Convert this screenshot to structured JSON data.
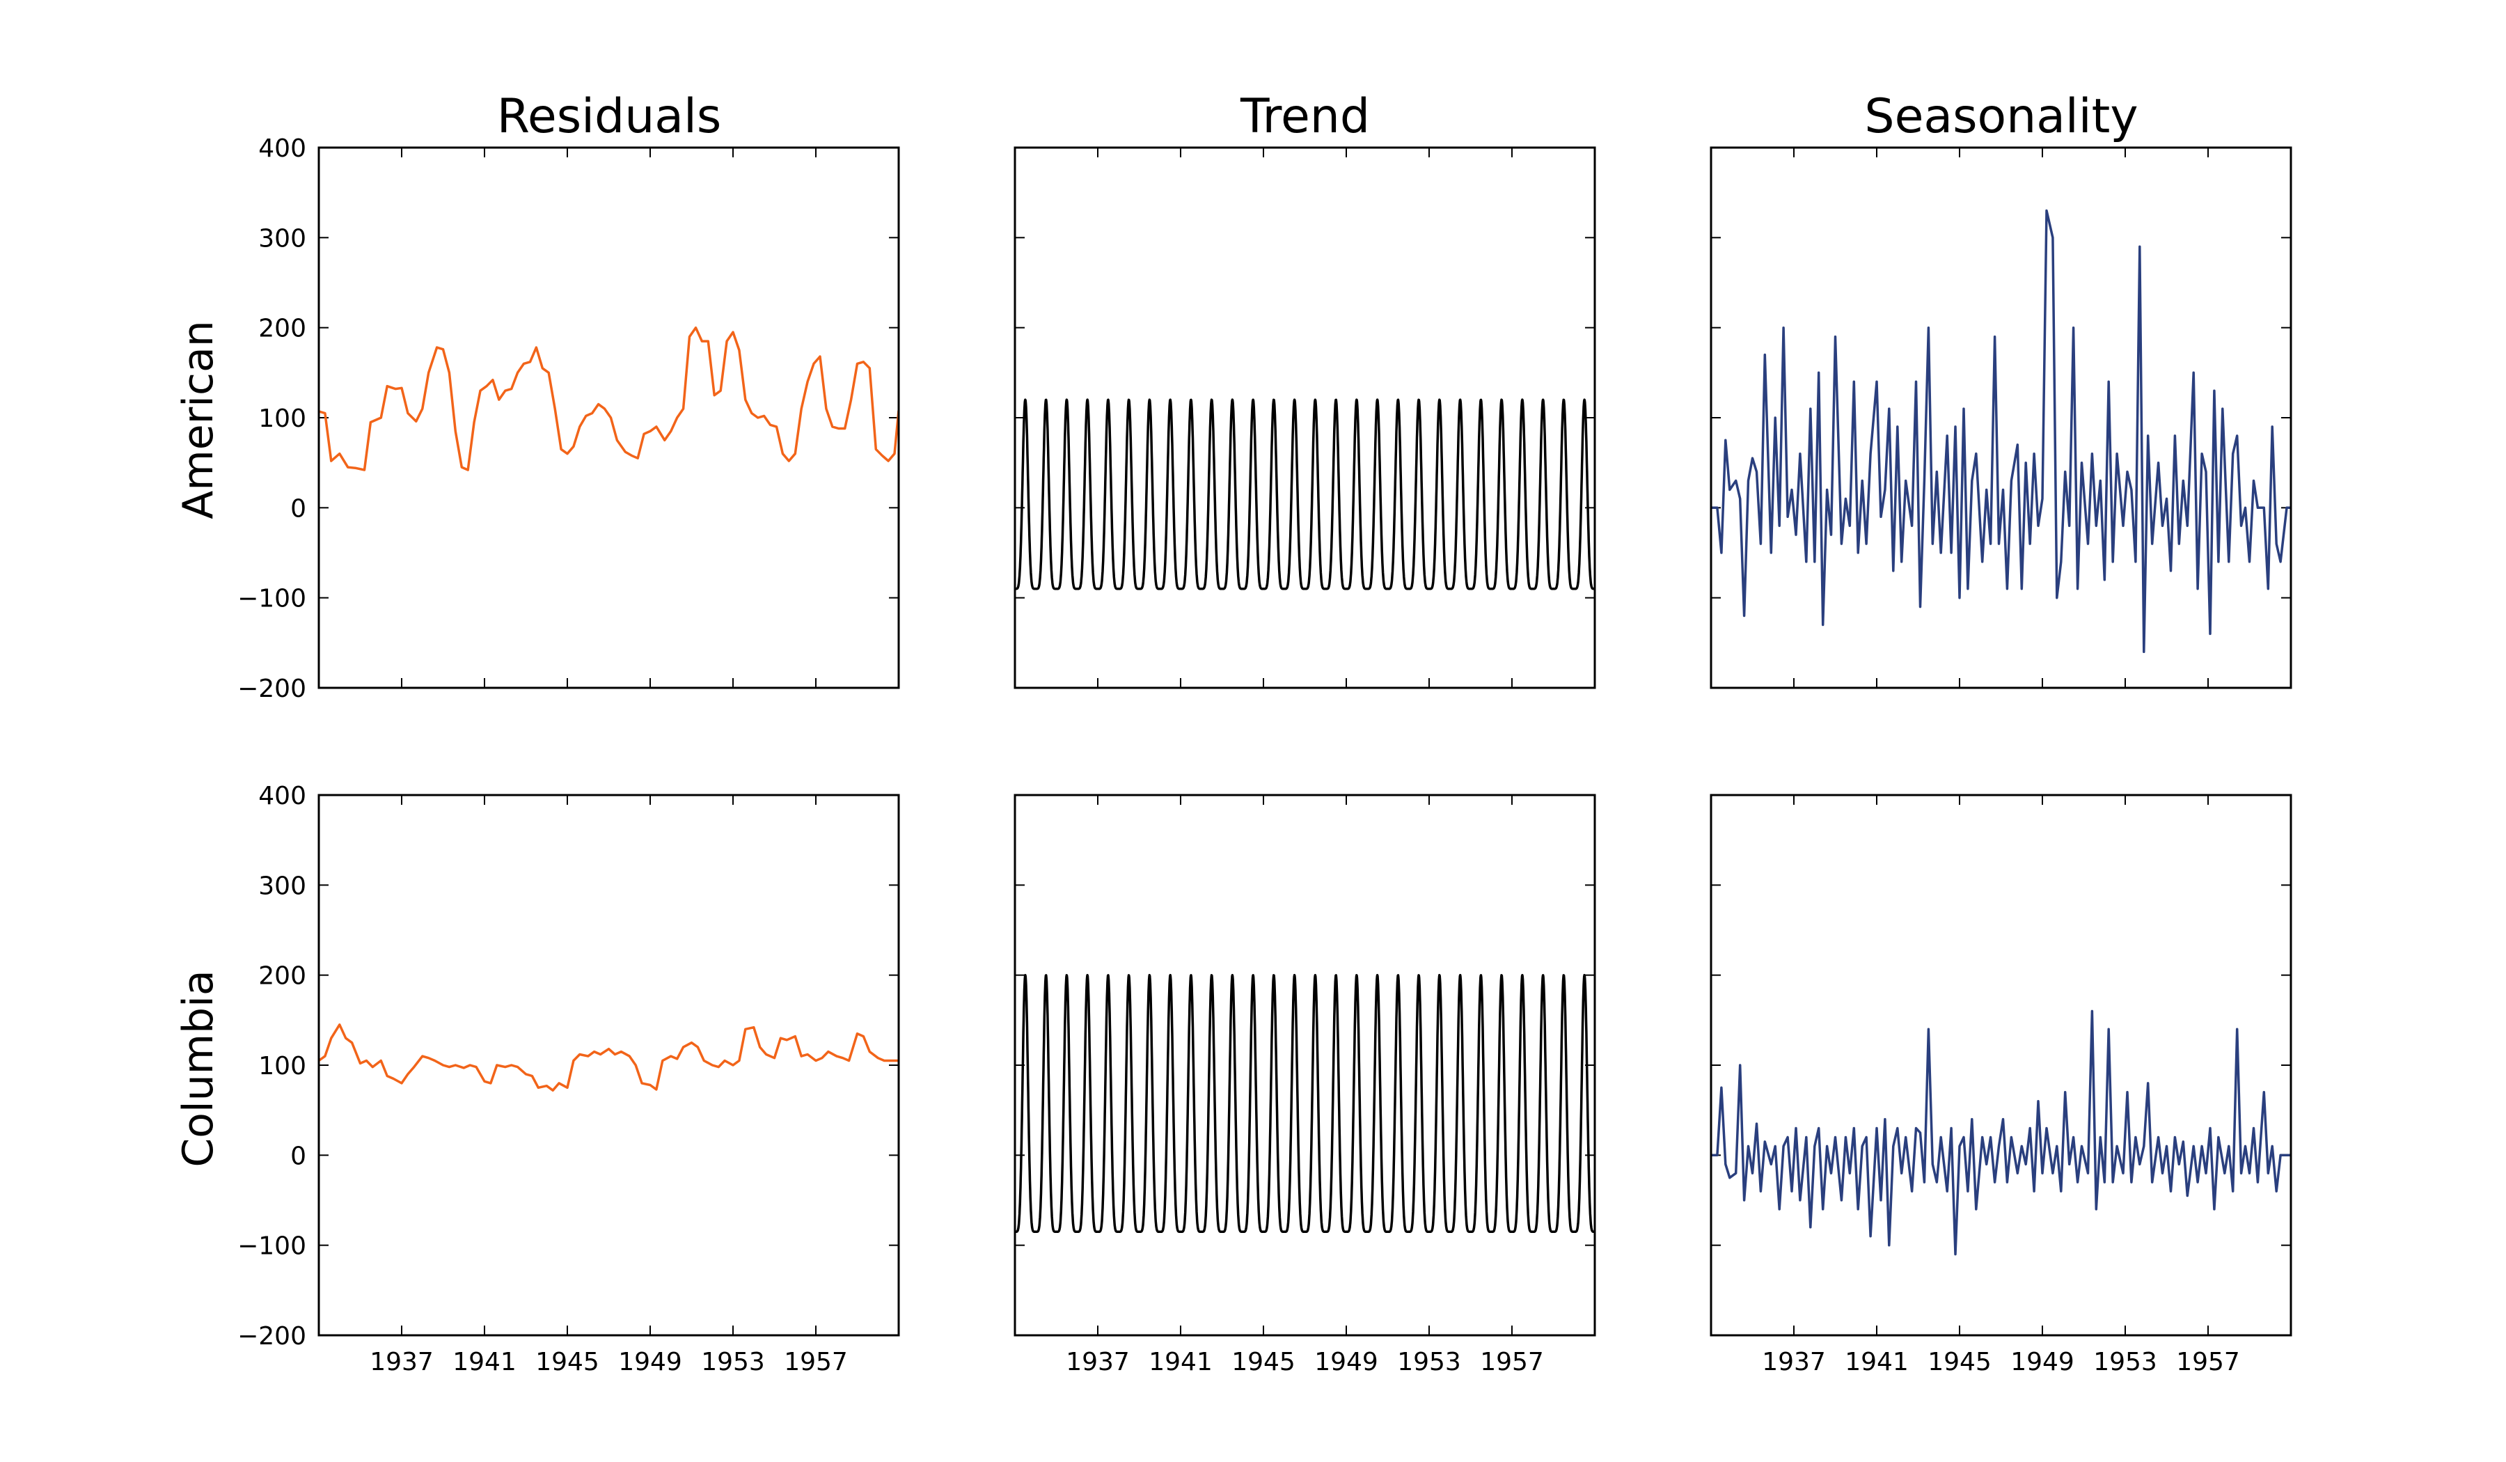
{
  "chart_data": {
    "type": "line",
    "layout": "2x3 grid, shared axes",
    "column_titles": [
      "Residuals",
      "Trend",
      "Seasonality"
    ],
    "row_labels": [
      "American",
      "Columbia"
    ],
    "ylim": [
      -200,
      400
    ],
    "yticks": [
      -200,
      -100,
      0,
      100,
      200,
      300,
      400
    ],
    "ytick_labels": [
      "−200",
      "−100",
      "0",
      "100",
      "200",
      "300",
      "400"
    ],
    "xlim": [
      1933.0,
      1961.0
    ],
    "xticks": [
      1937,
      1941,
      1945,
      1949,
      1953,
      1957
    ],
    "xtick_labels": [
      "1937",
      "1941",
      "1945",
      "1949",
      "1953",
      "1957"
    ],
    "grid": false,
    "colors": {
      "residuals": "#f26419",
      "trend": "#000000",
      "seasonality": "#2a3f7e"
    },
    "series": {
      "American": {
        "Residuals": {
          "x": [
            1933.0,
            1933.3,
            1933.6,
            1934.0,
            1934.4,
            1934.8,
            1935.2,
            1935.5,
            1936.0,
            1936.3,
            1936.7,
            1937.0,
            1937.3,
            1937.7,
            1938.0,
            1938.3,
            1938.7,
            1939.0,
            1939.3,
            1939.6,
            1939.9,
            1940.2,
            1940.5,
            1940.8,
            1941.1,
            1941.4,
            1941.7,
            1942.0,
            1942.3,
            1942.6,
            1942.9,
            1943.2,
            1943.5,
            1943.8,
            1944.1,
            1944.4,
            1944.7,
            1945.0,
            1945.3,
            1945.6,
            1945.9,
            1946.2,
            1946.5,
            1946.8,
            1947.1,
            1947.4,
            1947.8,
            1948.1,
            1948.4,
            1948.7,
            1949.0,
            1949.3,
            1949.7,
            1950.0,
            1950.3,
            1950.6,
            1950.9,
            1951.2,
            1951.5,
            1951.8,
            1952.1,
            1952.4,
            1952.7,
            1953.0,
            1953.3,
            1953.6,
            1953.9,
            1954.2,
            1954.5,
            1954.8,
            1955.1,
            1955.4,
            1955.7,
            1956.0,
            1956.3,
            1956.6,
            1956.9,
            1957.2,
            1957.5,
            1957.8,
            1958.1,
            1958.4,
            1958.7,
            1959.0,
            1959.3,
            1959.6,
            1959.9,
            1960.2,
            1960.5,
            1960.8,
            1961.0
          ],
          "values": [
            107,
            105,
            52,
            60,
            45,
            44,
            42,
            95,
            100,
            135,
            132,
            133,
            105,
            96,
            110,
            150,
            178,
            176,
            150,
            85,
            45,
            42,
            95,
            130,
            135,
            142,
            120,
            130,
            132,
            150,
            160,
            162,
            178,
            155,
            150,
            110,
            65,
            60,
            68,
            90,
            102,
            105,
            115,
            110,
            100,
            75,
            62,
            58,
            55,
            82,
            85,
            90,
            75,
            85,
            100,
            110,
            190,
            200,
            185,
            185,
            125,
            130,
            185,
            195,
            175,
            120,
            105,
            100,
            102,
            92,
            90,
            60,
            52,
            60,
            110,
            140,
            160,
            168,
            110,
            90,
            88,
            88,
            120,
            160,
            162,
            155,
            65,
            58,
            52,
            60,
            108
          ]
        },
        "Trend": {
          "min": -90,
          "max": 120,
          "cycles": 28,
          "x_start": 1933.0,
          "x_end": 1961.0
        },
        "Seasonality": {
          "x": [
            1933.0,
            1933.3,
            1933.5,
            1933.7,
            1933.9,
            1934.2,
            1934.4,
            1934.6,
            1934.8,
            1935.0,
            1935.2,
            1935.4,
            1935.6,
            1935.9,
            1936.1,
            1936.3,
            1936.5,
            1936.7,
            1936.9,
            1937.1,
            1937.3,
            1937.6,
            1937.8,
            1938.0,
            1938.2,
            1938.4,
            1938.6,
            1938.8,
            1939.0,
            1939.3,
            1939.5,
            1939.7,
            1939.9,
            1940.1,
            1940.3,
            1940.5,
            1940.7,
            1941.0,
            1941.2,
            1941.4,
            1941.6,
            1941.8,
            1942.0,
            1942.2,
            1942.4,
            1942.7,
            1942.9,
            1943.1,
            1943.3,
            1943.5,
            1943.7,
            1943.9,
            1944.1,
            1944.4,
            1944.6,
            1944.8,
            1945.0,
            1945.2,
            1945.4,
            1945.6,
            1945.8,
            1946.1,
            1946.3,
            1946.5,
            1946.7,
            1946.9,
            1947.1,
            1947.3,
            1947.5,
            1947.8,
            1948.0,
            1948.2,
            1948.4,
            1948.6,
            1948.8,
            1949.0,
            1949.2,
            1949.5,
            1949.7,
            1949.9,
            1950.1,
            1950.3,
            1950.5,
            1950.7,
            1950.9,
            1951.2,
            1951.4,
            1951.6,
            1951.8,
            1952.0,
            1952.2,
            1952.4,
            1952.6,
            1952.9,
            1953.1,
            1953.3,
            1953.5,
            1953.7,
            1953.9,
            1954.1,
            1954.3,
            1954.6,
            1954.8,
            1955.0,
            1955.2,
            1955.4,
            1955.6,
            1955.8,
            1956.0,
            1956.3,
            1956.5,
            1956.7,
            1956.9,
            1957.1,
            1957.3,
            1957.5,
            1957.7,
            1958.0,
            1958.2,
            1958.4,
            1958.6,
            1958.8,
            1959.0,
            1959.2,
            1959.4,
            1959.7,
            1959.9,
            1960.1,
            1960.3,
            1960.5,
            1960.8,
            1961.0
          ],
          "values": [
            0,
            0,
            -50,
            75,
            20,
            30,
            10,
            -120,
            30,
            55,
            40,
            -40,
            170,
            -50,
            100,
            -20,
            200,
            -10,
            20,
            -30,
            60,
            -60,
            110,
            -60,
            150,
            -130,
            20,
            -30,
            190,
            -40,
            10,
            -20,
            140,
            -50,
            30,
            -40,
            60,
            140,
            -10,
            20,
            110,
            -70,
            90,
            -60,
            30,
            -20,
            140,
            -110,
            30,
            200,
            -40,
            40,
            -50,
            80,
            -50,
            90,
            -100,
            110,
            -90,
            30,
            60,
            -60,
            20,
            -40,
            190,
            -40,
            20,
            -90,
            30,
            70,
            -90,
            50,
            -40,
            60,
            -20,
            10,
            330,
            300,
            -100,
            -60,
            40,
            -20,
            200,
            -90,
            50,
            -40,
            60,
            -20,
            30,
            -80,
            140,
            -60,
            60,
            -20,
            40,
            20,
            -60,
            290,
            -160,
            80,
            -40,
            50,
            -20,
            10,
            -70,
            80,
            -40,
            30,
            -20,
            150,
            -90,
            60,
            40,
            -140,
            130,
            -60,
            110,
            -60,
            60,
            80,
            -20,
            0,
            -60,
            30,
            0,
            0,
            -90,
            90,
            -40,
            -60,
            0,
            0
          ]
        }
      },
      "Columbia": {
        "Residuals": {
          "x": [
            1933.0,
            1933.3,
            1933.6,
            1934.0,
            1934.3,
            1934.6,
            1935.0,
            1935.3,
            1935.6,
            1936.0,
            1936.3,
            1936.6,
            1937.0,
            1937.3,
            1937.6,
            1938.0,
            1938.3,
            1938.6,
            1939.0,
            1939.3,
            1939.6,
            1940.0,
            1940.3,
            1940.6,
            1941.0,
            1941.3,
            1941.6,
            1942.0,
            1942.3,
            1942.6,
            1943.0,
            1943.3,
            1943.6,
            1944.0,
            1944.3,
            1944.6,
            1945.0,
            1945.3,
            1945.6,
            1946.0,
            1946.3,
            1946.6,
            1947.0,
            1947.3,
            1947.6,
            1948.0,
            1948.3,
            1948.6,
            1949.0,
            1949.3,
            1949.6,
            1950.0,
            1950.3,
            1950.6,
            1951.0,
            1951.3,
            1951.6,
            1952.0,
            1952.3,
            1952.6,
            1953.0,
            1953.3,
            1953.6,
            1954.0,
            1954.3,
            1954.6,
            1955.0,
            1955.3,
            1955.6,
            1956.0,
            1956.3,
            1956.6,
            1957.0,
            1957.3,
            1957.6,
            1958.0,
            1958.3,
            1958.6,
            1959.0,
            1959.3,
            1959.6,
            1960.0,
            1960.3,
            1960.6,
            1961.0
          ],
          "values": [
            105,
            110,
            130,
            145,
            130,
            125,
            102,
            105,
            98,
            105,
            88,
            85,
            80,
            90,
            98,
            110,
            108,
            105,
            100,
            98,
            100,
            97,
            100,
            98,
            82,
            80,
            100,
            98,
            100,
            98,
            90,
            88,
            75,
            77,
            72,
            80,
            75,
            105,
            112,
            110,
            115,
            112,
            118,
            112,
            115,
            110,
            100,
            80,
            78,
            73,
            105,
            110,
            107,
            120,
            125,
            120,
            105,
            100,
            98,
            105,
            100,
            105,
            140,
            142,
            120,
            112,
            108,
            130,
            128,
            132,
            110,
            112,
            105,
            108,
            115,
            110,
            108,
            105,
            135,
            132,
            115,
            108,
            105,
            105,
            105
          ]
        },
        "Trend": {
          "min": -85,
          "max": 200,
          "cycles": 28,
          "x_start": 1933.0,
          "x_end": 1961.0
        },
        "Seasonality": {
          "x": [
            1933.0,
            1933.3,
            1933.5,
            1933.7,
            1933.9,
            1934.2,
            1934.4,
            1934.6,
            1934.8,
            1935.0,
            1935.2,
            1935.4,
            1935.6,
            1935.9,
            1936.1,
            1936.3,
            1936.5,
            1936.7,
            1936.9,
            1937.1,
            1937.3,
            1937.6,
            1937.8,
            1938.0,
            1938.2,
            1938.4,
            1938.6,
            1938.8,
            1939.0,
            1939.3,
            1939.5,
            1939.7,
            1939.9,
            1940.1,
            1940.3,
            1940.5,
            1940.7,
            1941.0,
            1941.2,
            1941.4,
            1941.6,
            1941.8,
            1942.0,
            1942.2,
            1942.4,
            1942.7,
            1942.9,
            1943.1,
            1943.3,
            1943.5,
            1943.7,
            1943.9,
            1944.1,
            1944.4,
            1944.6,
            1944.8,
            1945.0,
            1945.2,
            1945.4,
            1945.6,
            1945.8,
            1946.1,
            1946.3,
            1946.5,
            1946.7,
            1946.9,
            1947.1,
            1947.3,
            1947.5,
            1947.8,
            1948.0,
            1948.2,
            1948.4,
            1948.6,
            1948.8,
            1949.0,
            1949.2,
            1949.5,
            1949.7,
            1949.9,
            1950.1,
            1950.3,
            1950.5,
            1950.7,
            1950.9,
            1951.2,
            1951.4,
            1951.6,
            1951.8,
            1952.0,
            1952.2,
            1952.4,
            1952.6,
            1952.9,
            1953.1,
            1953.3,
            1953.5,
            1953.7,
            1953.9,
            1954.1,
            1954.3,
            1954.6,
            1954.8,
            1955.0,
            1955.2,
            1955.4,
            1955.6,
            1955.8,
            1956.0,
            1956.3,
            1956.5,
            1956.7,
            1956.9,
            1957.1,
            1957.3,
            1957.5,
            1957.8,
            1958.0,
            1958.2,
            1958.4,
            1958.6,
            1958.8,
            1959.0,
            1959.2,
            1959.4,
            1959.7,
            1959.9,
            1960.1,
            1960.3,
            1960.5,
            1960.7,
            1961.0
          ],
          "values": [
            0,
            0,
            75,
            -10,
            -25,
            -20,
            100,
            -50,
            10,
            -20,
            35,
            -40,
            15,
            -10,
            10,
            -60,
            10,
            20,
            -40,
            30,
            -50,
            20,
            -80,
            10,
            30,
            -60,
            10,
            -20,
            20,
            -50,
            20,
            -20,
            30,
            -60,
            10,
            20,
            -90,
            30,
            -50,
            40,
            -100,
            10,
            30,
            -20,
            20,
            -40,
            30,
            25,
            -30,
            140,
            -10,
            -30,
            20,
            -40,
            30,
            -110,
            10,
            20,
            -40,
            40,
            -60,
            20,
            -10,
            20,
            -30,
            10,
            40,
            -30,
            20,
            -20,
            10,
            -10,
            30,
            -40,
            60,
            -20,
            30,
            -20,
            10,
            -40,
            70,
            -10,
            20,
            -30,
            10,
            -20,
            160,
            -60,
            20,
            -30,
            140,
            -30,
            10,
            -20,
            70,
            -30,
            20,
            -10,
            10,
            80,
            -30,
            20,
            -20,
            10,
            -40,
            20,
            -10,
            15,
            -45,
            10,
            -30,
            10,
            -20,
            30,
            -60,
            20,
            -20,
            10,
            -40,
            140,
            -20,
            10,
            -20,
            30,
            -30,
            70,
            -20,
            10,
            -40,
            0,
            0,
            0
          ]
        }
      }
    }
  }
}
